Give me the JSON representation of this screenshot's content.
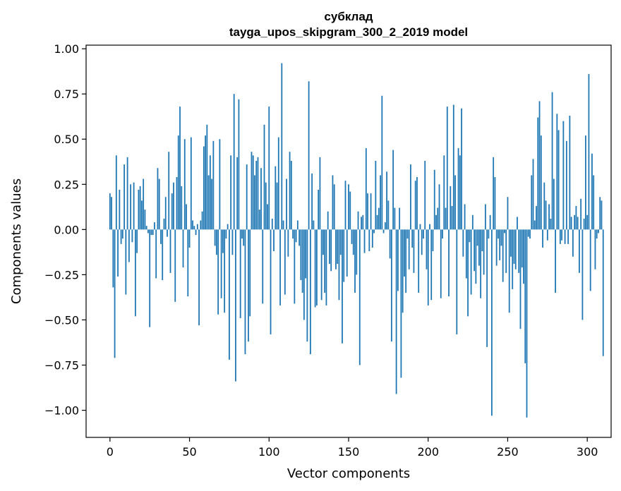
{
  "chart_data": {
    "type": "bar",
    "title": [
      "субклад",
      "tayga_upos_skipgram_300_2_2019 model"
    ],
    "xlabel": "Vector components",
    "ylabel": "Components values",
    "xlim": [
      -15,
      315
    ],
    "ylim": [
      -1.15,
      1.02
    ],
    "xticks": [
      0,
      50,
      100,
      150,
      200,
      250,
      300
    ],
    "xtick_labels": [
      "0",
      "50",
      "100",
      "150",
      "200",
      "250",
      "300"
    ],
    "yticks": [
      1.0,
      0.75,
      0.5,
      0.25,
      0.0,
      -0.25,
      -0.5,
      -0.75,
      -1.0
    ],
    "ytick_labels": [
      "1.00",
      "0.75",
      "0.50",
      "0.25",
      "0.00",
      "−0.25",
      "−0.50",
      "−0.75",
      "−1.00"
    ],
    "bar_color": "#1f77b4",
    "grid": false,
    "legend": false,
    "series": [
      {
        "values": [
          0.2,
          0.18,
          -0.32,
          -0.71,
          0.41,
          -0.26,
          0.22,
          -0.08,
          -0.05,
          0.36,
          -0.36,
          0.4,
          -0.18,
          0.25,
          -0.07,
          0.26,
          -0.48,
          -0.13,
          0.22,
          0.24,
          0.16,
          0.28,
          0.11,
          0.02,
          -0.02,
          -0.54,
          -0.03,
          -0.03,
          0.04,
          -0.27,
          0.34,
          0.28,
          -0.08,
          -0.28,
          0.06,
          0.18,
          -0.04,
          0.43,
          -0.24,
          0.2,
          0.26,
          -0.4,
          0.29,
          0.52,
          0.68,
          0.24,
          -0.21,
          0.5,
          0.14,
          -0.37,
          -0.1,
          0.51,
          0.05,
          0.02,
          -0.03,
          0.03,
          -0.53,
          0.05,
          0.1,
          0.46,
          0.52,
          0.58,
          0.3,
          0.41,
          0.28,
          0.49,
          -0.09,
          -0.14,
          -0.47,
          0.5,
          -0.38,
          -0.13,
          -0.46,
          -0.05,
          0.03,
          -0.72,
          0.41,
          -0.14,
          0.75,
          -0.84,
          0.4,
          0.72,
          -0.49,
          -0.05,
          -0.09,
          -0.69,
          0.36,
          -0.62,
          -0.48,
          0.43,
          0.41,
          0.3,
          0.38,
          0.4,
          0.11,
          0.34,
          -0.41,
          0.58,
          0.26,
          0.14,
          0.68,
          -0.58,
          0.06,
          -0.12,
          0.35,
          0.26,
          0.51,
          -0.42,
          0.92,
          0.05,
          -0.36,
          0.28,
          -0.15,
          0.43,
          0.38,
          -0.05,
          -0.41,
          -0.07,
          0.05,
          -0.09,
          -0.28,
          -0.35,
          -0.5,
          -0.27,
          -0.62,
          0.82,
          -0.69,
          0.31,
          0.05,
          -0.43,
          -0.42,
          0.22,
          0.4,
          -0.39,
          -0.14,
          -0.35,
          -0.42,
          0.1,
          -0.19,
          -0.23,
          0.3,
          0.25,
          -0.22,
          -0.19,
          -0.39,
          -0.14,
          -0.63,
          -0.29,
          0.27,
          -0.26,
          0.25,
          0.21,
          -0.08,
          -0.14,
          -0.35,
          -0.25,
          0.1,
          -0.75,
          0.07,
          0.08,
          -0.13,
          0.45,
          0.2,
          -0.12,
          0.2,
          -0.1,
          -0.02,
          0.38,
          0.08,
          0.12,
          0.3,
          0.74,
          -0.02,
          0.04,
          0.32,
          0.16,
          -0.16,
          -0.62,
          0.44,
          0.12,
          -0.91,
          -0.34,
          0.12,
          -0.82,
          -0.46,
          -0.26,
          -0.35,
          -0.05,
          -0.22,
          0.36,
          -0.1,
          -0.24,
          0.27,
          0.29,
          -0.35,
          0.03,
          -0.14,
          -0.05,
          0.38,
          -0.22,
          -0.42,
          0.03,
          -0.39,
          -0.12,
          0.33,
          0.08,
          0.12,
          0.25,
          -0.38,
          -0.05,
          0.41,
          0.12,
          0.68,
          -0.37,
          0.24,
          0.13,
          0.69,
          0.3,
          -0.58,
          0.45,
          0.41,
          0.67,
          -0.15,
          0.14,
          -0.27,
          -0.48,
          -0.07,
          -0.36,
          0.08,
          -0.23,
          -0.3,
          -0.09,
          -0.2,
          -0.38,
          -0.12,
          -0.25,
          0.14,
          -0.65,
          -0.05,
          0.08,
          -1.03,
          0.4,
          0.29,
          -0.2,
          -0.05,
          -0.17,
          -0.09,
          -0.29,
          -0.02,
          -0.24,
          0.18,
          -0.46,
          -0.15,
          -0.33,
          -0.19,
          -0.22,
          0.07,
          -0.24,
          -0.55,
          -0.21,
          -0.3,
          -0.74,
          -1.04,
          -0.04,
          -0.05,
          0.3,
          0.39,
          0.05,
          0.13,
          0.62,
          0.71,
          0.52,
          -0.1,
          0.26,
          0.16,
          -0.06,
          0.14,
          0.06,
          0.76,
          0.28,
          -0.35,
          0.64,
          0.55,
          -0.08,
          -0.06,
          0.6,
          -0.08,
          0.49,
          -0.08,
          0.63,
          0.07,
          -0.15,
          0.08,
          0.13,
          0.07,
          -0.24,
          0.17,
          -0.5,
          0.06,
          0.52,
          0.08,
          0.86,
          -0.34,
          0.42,
          0.3,
          -0.22,
          -0.05,
          -0.02,
          0.18,
          0.16,
          -0.7
        ]
      }
    ]
  }
}
